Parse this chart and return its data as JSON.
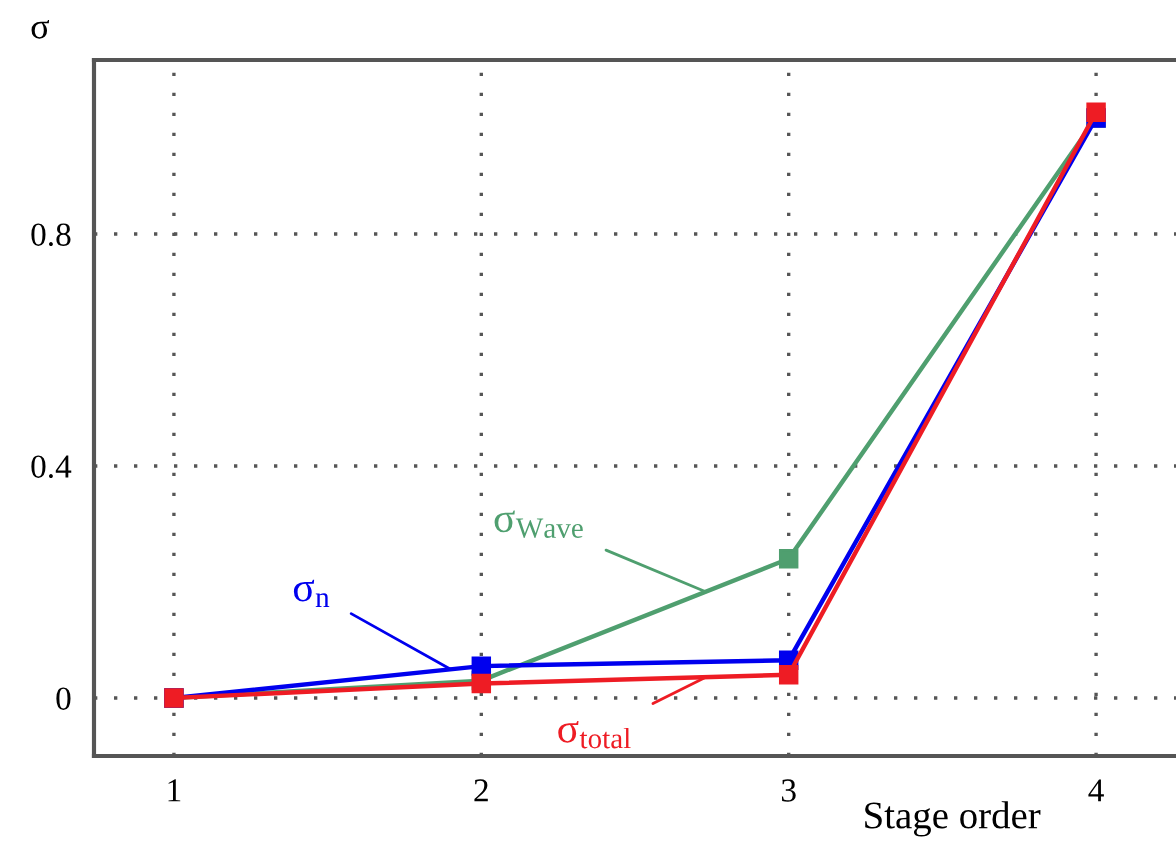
{
  "chart_data": {
    "type": "line",
    "xlabel": "Stage order",
    "ylabel": "σ",
    "x": [
      1,
      2,
      3,
      4
    ],
    "series": [
      {
        "name": "σ$_{Wave}$",
        "color": "#4f9f6f",
        "values": [
          0,
          0.03,
          0.24,
          1.0
        ]
      },
      {
        "name": "σ$_{n}$",
        "color": "#0000ee",
        "values": [
          0,
          0.055,
          0.065,
          1.0
        ]
      },
      {
        "name": "σ$_{total}$",
        "color": "#ee1c24",
        "values": [
          0,
          0.025,
          0.04,
          1.01
        ]
      }
    ],
    "xlim": [
      0.74,
      4.26
    ],
    "ylim": [
      -0.1,
      1.1
    ],
    "xticks": [
      1,
      2,
      3,
      4
    ],
    "yticks": [
      0,
      0.4,
      0.8
    ],
    "grid": true,
    "marker": "square",
    "line_style": "solid",
    "legend": false
  }
}
